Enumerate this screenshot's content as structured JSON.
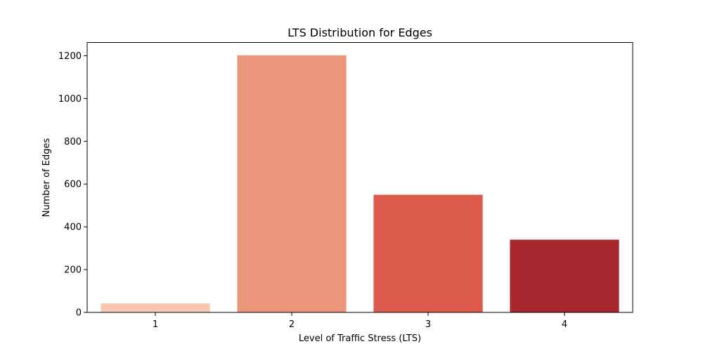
{
  "chart_data": {
    "type": "bar",
    "title": "LTS Distribution for Edges",
    "xlabel": "Level of Traffic Stress (LTS)",
    "ylabel": "Number of Edges",
    "categories": [
      "1",
      "2",
      "3",
      "4"
    ],
    "values": [
      42,
      1202,
      550,
      340
    ],
    "colors": [
      "#f6c7b1",
      "#ea967b",
      "#db5a4b",
      "#a6272e"
    ],
    "ylim": [
      0,
      1262
    ],
    "yticks": [
      0,
      200,
      400,
      600,
      800,
      1000,
      1200
    ],
    "grid": false,
    "legend": "none"
  }
}
